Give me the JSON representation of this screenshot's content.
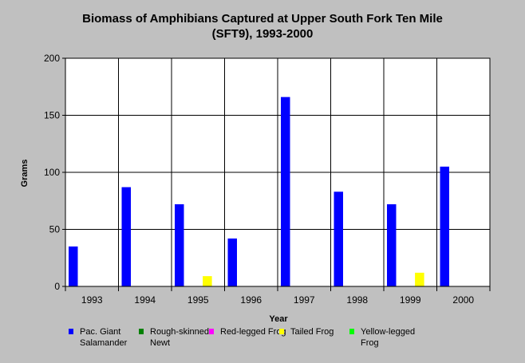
{
  "chart_data": {
    "type": "bar",
    "title_lines": [
      "Biomass of Amphibians Captured at Upper South Fork Ten Mile",
      "(SFT9), 1993-2000"
    ],
    "xlabel": "Year",
    "ylabel": "Grams",
    "ylim": [
      0,
      200
    ],
    "yticks": [
      "0",
      "50",
      "100",
      "150",
      "200"
    ],
    "categories": [
      "1993",
      "1994",
      "1995",
      "1996",
      "1997",
      "1998",
      "1999",
      "2000"
    ],
    "grid": true,
    "legend_position": "bottom",
    "series": [
      {
        "name": "Pac. Giant Salamander",
        "color": "#0000ff",
        "values": [
          35,
          87,
          72,
          42,
          166,
          83,
          72,
          105
        ]
      },
      {
        "name": "Rough-skinned Newt",
        "color": "#008000",
        "values": [
          0,
          0,
          0,
          0,
          0,
          0,
          0,
          0
        ]
      },
      {
        "name": "Red-legged Frog",
        "color": "#ff00ff",
        "values": [
          0,
          0,
          0,
          0,
          0,
          0,
          0,
          0
        ]
      },
      {
        "name": "Tailed Frog",
        "color": "#ffff00",
        "values": [
          0,
          0,
          9,
          0,
          0,
          0,
          12,
          0
        ]
      },
      {
        "name": "Yellow-legged Frog",
        "color": "#00ff00",
        "values": [
          0,
          0,
          0,
          0,
          0,
          0,
          0,
          0
        ]
      }
    ]
  },
  "legend": {
    "items": [
      {
        "label": "Pac. Giant Salamander",
        "color": "#0000ff"
      },
      {
        "label": "Rough-skinned Newt",
        "color": "#008000"
      },
      {
        "label": "Red-legged Frog",
        "color": "#ff00ff"
      },
      {
        "label": "Tailed Frog",
        "color": "#ffff00"
      },
      {
        "label": "Yellow-legged Frog",
        "color": "#00ff00"
      }
    ]
  }
}
